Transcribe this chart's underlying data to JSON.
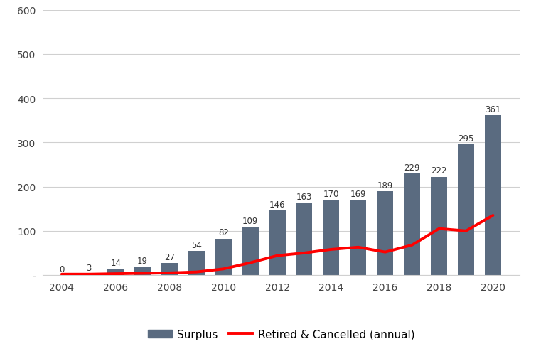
{
  "years": [
    2004,
    2005,
    2006,
    2007,
    2008,
    2009,
    2010,
    2011,
    2012,
    2013,
    2014,
    2015,
    2016,
    2017,
    2018,
    2019,
    2020
  ],
  "surplus": [
    0,
    3,
    14,
    19,
    27,
    54,
    82,
    109,
    146,
    163,
    170,
    169,
    189,
    229,
    222,
    295,
    361
  ],
  "surplus_labels": [
    "0",
    "3",
    "14",
    "19",
    "27",
    "54",
    "82",
    "109",
    "146",
    "163",
    "170",
    "169",
    "189",
    "229",
    "222",
    "295",
    "361"
  ],
  "retired_line_years": [
    2004,
    2005,
    2006,
    2007,
    2008,
    2009,
    2010,
    2011,
    2012,
    2013,
    2014,
    2015,
    2016,
    2017,
    2018,
    2019,
    2020
  ],
  "retired_line_values": [
    2,
    2,
    3,
    4,
    5,
    7,
    14,
    28,
    44,
    50,
    58,
    63,
    52,
    68,
    105,
    100,
    135
  ],
  "bar_color": "#5a6b80",
  "line_color": "#ff0000",
  "ylim": [
    0,
    600
  ],
  "yticks": [
    0,
    100,
    200,
    300,
    400,
    500,
    600
  ],
  "ytick_labels": [
    "-",
    "100",
    "200",
    "300",
    "400",
    "500",
    "600"
  ],
  "xtick_labels": [
    "2004",
    "2006",
    "2008",
    "2010",
    "2012",
    "2014",
    "2016",
    "2018",
    "2020"
  ],
  "xtick_positions": [
    2004,
    2006,
    2008,
    2010,
    2012,
    2014,
    2016,
    2018,
    2020
  ],
  "legend_surplus_label": "Surplus",
  "legend_line_label": "Retired & Cancelled ",
  "legend_line_bold": "(annual)",
  "background_color": "#ffffff",
  "grid_color": "#d0d0d0",
  "label_fontsize": 8.5,
  "axis_fontsize": 10,
  "bar_width": 0.6
}
